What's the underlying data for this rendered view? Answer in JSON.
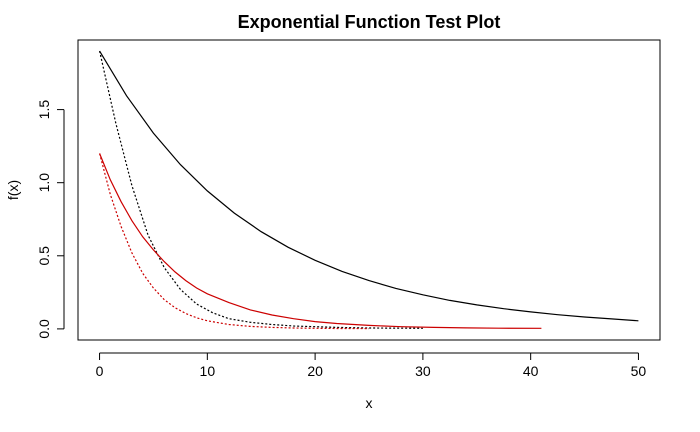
{
  "chart_data": {
    "type": "line",
    "title": "Exponential Function Test Plot",
    "xlabel": "x",
    "ylabel": "f(x)",
    "xlim": [
      -2,
      52
    ],
    "ylim": [
      -0.076,
      1.976
    ],
    "xticks": [
      "0",
      "10",
      "20",
      "30",
      "40",
      "50"
    ],
    "yticks": [
      "0.0",
      "0.5",
      "1.0",
      "1.5"
    ],
    "grid": false,
    "legend": "none",
    "series": [
      {
        "color": "#000000",
        "dash": "solid",
        "x": [
          0,
          2.5,
          5,
          7.5,
          10,
          12.5,
          15,
          17.5,
          20,
          22.5,
          25,
          27.5,
          30,
          32.5,
          35,
          37.5,
          40,
          42.5,
          45,
          47.5,
          50
        ],
        "y": [
          1.9,
          1.595,
          1.339,
          1.124,
          0.944,
          0.792,
          0.665,
          0.558,
          0.469,
          0.393,
          0.33,
          0.277,
          0.233,
          0.195,
          0.164,
          0.138,
          0.116,
          0.097,
          0.081,
          0.068,
          0.055
        ]
      },
      {
        "color": "#000000",
        "dash": "dotted",
        "x": [
          0,
          1.5,
          3,
          4.5,
          6,
          7.5,
          9,
          10.5,
          12,
          14,
          16,
          18,
          20,
          22,
          25,
          30
        ],
        "y": [
          1.9,
          1.41,
          0.98,
          0.64,
          0.42,
          0.27,
          0.17,
          0.11,
          0.07,
          0.045,
          0.03,
          0.02,
          0.015,
          0.01,
          0.006,
          0.004
        ]
      },
      {
        "color": "#cc0000",
        "dash": "solid",
        "x": [
          0,
          1,
          2,
          3,
          4,
          5,
          6,
          7,
          8,
          9,
          10,
          12,
          14,
          16,
          18,
          20,
          22,
          25,
          28,
          31,
          34,
          37,
          41
        ],
        "y": [
          1.2,
          1.02,
          0.87,
          0.74,
          0.63,
          0.54,
          0.46,
          0.39,
          0.33,
          0.28,
          0.24,
          0.18,
          0.13,
          0.095,
          0.07,
          0.05,
          0.037,
          0.024,
          0.015,
          0.01,
          0.007,
          0.005,
          0.004
        ]
      },
      {
        "color": "#cc0000",
        "dash": "dotted",
        "x": [
          0,
          1,
          2,
          3,
          4,
          5,
          6,
          7,
          8,
          9,
          10,
          12,
          14,
          16,
          18,
          20,
          22,
          25
        ],
        "y": [
          1.2,
          0.92,
          0.7,
          0.52,
          0.38,
          0.28,
          0.2,
          0.145,
          0.105,
          0.076,
          0.055,
          0.03,
          0.017,
          0.01,
          0.006,
          0.004,
          0.003,
          0.002
        ]
      }
    ]
  }
}
